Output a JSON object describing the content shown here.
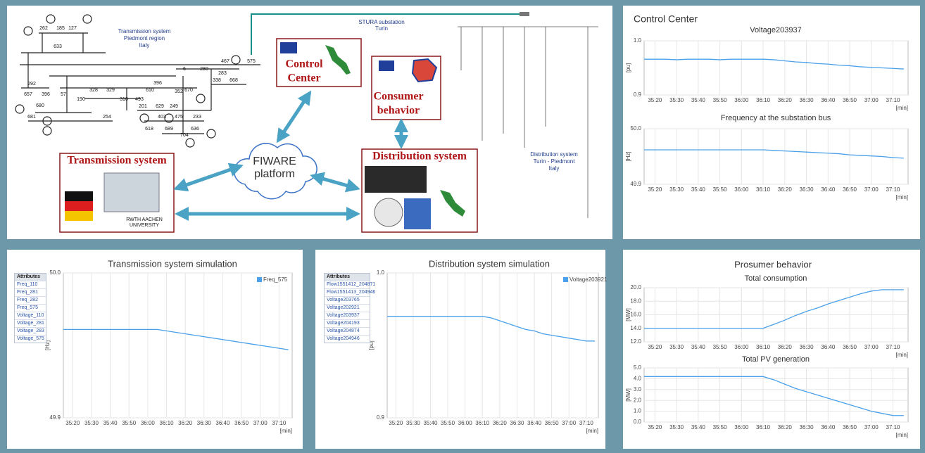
{
  "diagram": {
    "transmission_note": [
      "Transmission system",
      "Piedmont region",
      "Italy"
    ],
    "stura_note": [
      "STURA substation",
      "Turin"
    ],
    "distribution_note": [
      "Distribution system",
      "Turin - Piedmont",
      "Italy"
    ],
    "control_center": [
      "Control",
      "Center"
    ],
    "consumer": [
      "Consumer",
      "behavior"
    ],
    "transmission_box": "Transmission system",
    "distribution_box": "Distribution system",
    "fiware": [
      "FIWARE",
      "platform"
    ],
    "rwth": [
      "RWTH AACHEN",
      "UNIVERSITY"
    ],
    "bus_labels": [
      "262",
      "185",
      "127",
      "633",
      "467",
      "575",
      "6",
      "280",
      "283",
      "338",
      "668",
      "292",
      "396",
      "657",
      "396",
      "57",
      "328",
      "329",
      "610",
      "352",
      "670",
      "190",
      "310",
      "493",
      "680",
      "201",
      "629",
      "249",
      "681",
      "403",
      "475",
      "233",
      "254",
      "618",
      "689",
      "636",
      "704"
    ]
  },
  "control_center": {
    "title": "Control Center"
  },
  "prosumer": {
    "title": "Prosumer behavior"
  },
  "transmission_attributes": {
    "header": "Attributes",
    "items": [
      "Freq_110",
      "Freq_281",
      "Freq_282",
      "Freq_575",
      "Voltage_110",
      "Voltage_281",
      "Voltage_283",
      "Voltage_575"
    ]
  },
  "distribution_attributes": {
    "header": "Attributes",
    "items": [
      "Flow1551412_204871",
      "Flow1551413_204946",
      "Voltage203765",
      "Voltage202921",
      "Voltage203937",
      "Voltage204193",
      "Voltage204874",
      "Voltage204946"
    ]
  },
  "chart_data": [
    {
      "type": "line",
      "title": "Voltage203937",
      "ylabel": "[pu]",
      "xlabel": "[min]",
      "color": "#4aa0ea",
      "grid": true,
      "x": [
        2115,
        2120,
        2125,
        2130,
        2135,
        2140,
        2145,
        2150,
        2155,
        2160,
        2165,
        2170,
        2175,
        2180,
        2185,
        2190,
        2195,
        2200,
        2205,
        2210,
        2215,
        2220,
        2225,
        2230,
        2235
      ],
      "values": [
        0.966,
        0.966,
        0.966,
        0.965,
        0.966,
        0.966,
        0.966,
        0.965,
        0.966,
        0.966,
        0.966,
        0.966,
        0.965,
        0.963,
        0.961,
        0.96,
        0.958,
        0.957,
        0.955,
        0.954,
        0.952,
        0.951,
        0.95,
        0.949,
        0.948
      ],
      "xlim": [
        2115,
        2237
      ],
      "ylim": [
        0.9,
        1.0
      ],
      "xticks": [
        {
          "value": 2120,
          "label": "35:20"
        },
        {
          "value": 2130,
          "label": "35:30"
        },
        {
          "value": 2140,
          "label": "35:40"
        },
        {
          "value": 2150,
          "label": "35:50"
        },
        {
          "value": 2160,
          "label": "36:00"
        },
        {
          "value": 2170,
          "label": "36:10"
        },
        {
          "value": 2180,
          "label": "36:20"
        },
        {
          "value": 2190,
          "label": "36:30"
        },
        {
          "value": 2200,
          "label": "36:40"
        },
        {
          "value": 2210,
          "label": "36:50"
        },
        {
          "value": 2220,
          "label": "37:00"
        },
        {
          "value": 2230,
          "label": "37:10"
        }
      ],
      "yticks": [
        0.9,
        {
          "value": 1,
          "label": "1.0"
        }
      ]
    },
    {
      "type": "line",
      "title": "Frequency at the substation bus",
      "ylabel": "[Hz]",
      "xlabel": "[min]",
      "color": "#4aa0ea",
      "grid": true,
      "x": [
        2115,
        2120,
        2125,
        2130,
        2135,
        2140,
        2145,
        2150,
        2155,
        2160,
        2165,
        2170,
        2175,
        2180,
        2185,
        2190,
        2195,
        2200,
        2205,
        2210,
        2215,
        2220,
        2225,
        2230,
        2235
      ],
      "values": [
        49.962,
        49.962,
        49.962,
        49.962,
        49.962,
        49.962,
        49.962,
        49.962,
        49.962,
        49.962,
        49.962,
        49.962,
        49.961,
        49.96,
        49.959,
        49.958,
        49.957,
        49.956,
        49.955,
        49.953,
        49.952,
        49.951,
        49.95,
        49.948,
        49.947
      ],
      "xlim": [
        2115,
        2237
      ],
      "ylim": [
        49.9,
        50.0
      ],
      "xticks": [
        {
          "value": 2120,
          "label": "35:20"
        },
        {
          "value": 2130,
          "label": "35:30"
        },
        {
          "value": 2140,
          "label": "35:40"
        },
        {
          "value": 2150,
          "label": "35:50"
        },
        {
          "value": 2160,
          "label": "36:00"
        },
        {
          "value": 2170,
          "label": "36:10"
        },
        {
          "value": 2180,
          "label": "36:20"
        },
        {
          "value": 2190,
          "label": "36:30"
        },
        {
          "value": 2200,
          "label": "36:40"
        },
        {
          "value": 2210,
          "label": "36:50"
        },
        {
          "value": 2220,
          "label": "37:00"
        },
        {
          "value": 2230,
          "label": "37:10"
        }
      ],
      "yticks": [
        49.9,
        {
          "value": 50,
          "label": "50.0"
        }
      ]
    },
    {
      "type": "line",
      "title": "Transmission system simulation",
      "ylabel": "[Hz]",
      "xlabel": "[min]",
      "grid": true,
      "x": [
        2115,
        2120,
        2125,
        2130,
        2135,
        2140,
        2145,
        2150,
        2155,
        2160,
        2165,
        2170,
        2175,
        2180,
        2185,
        2190,
        2195,
        2200,
        2205,
        2210,
        2215,
        2220,
        2225,
        2230,
        2235
      ],
      "series": [
        {
          "name": "Freq_575",
          "color": "#4aa0ea",
          "values": [
            49.961,
            49.961,
            49.961,
            49.961,
            49.961,
            49.961,
            49.961,
            49.961,
            49.961,
            49.961,
            49.961,
            49.96,
            49.959,
            49.958,
            49.957,
            49.956,
            49.955,
            49.954,
            49.953,
            49.952,
            49.951,
            49.95,
            49.949,
            49.948,
            49.947
          ]
        }
      ],
      "xlim": [
        2115,
        2237
      ],
      "ylim": [
        49.9,
        50.0
      ],
      "xticks": [
        {
          "value": 2120,
          "label": "35:20"
        },
        {
          "value": 2130,
          "label": "35:30"
        },
        {
          "value": 2140,
          "label": "35:40"
        },
        {
          "value": 2150,
          "label": "35:50"
        },
        {
          "value": 2160,
          "label": "36:00"
        },
        {
          "value": 2170,
          "label": "36:10"
        },
        {
          "value": 2180,
          "label": "36:20"
        },
        {
          "value": 2190,
          "label": "36:30"
        },
        {
          "value": 2200,
          "label": "36:40"
        },
        {
          "value": 2210,
          "label": "36:50"
        },
        {
          "value": 2220,
          "label": "37:00"
        },
        {
          "value": 2230,
          "label": "37:10"
        }
      ],
      "yticks": [
        49.9,
        {
          "value": 50,
          "label": "50.0"
        }
      ]
    },
    {
      "type": "line",
      "title": "Distribution system simulation",
      "ylabel": "[pu]",
      "xlabel": "[min]",
      "grid": true,
      "x": [
        2115,
        2120,
        2125,
        2130,
        2135,
        2140,
        2145,
        2150,
        2155,
        2160,
        2165,
        2170,
        2175,
        2180,
        2185,
        2190,
        2195,
        2200,
        2205,
        2210,
        2215,
        2220,
        2225,
        2230,
        2235
      ],
      "series": [
        {
          "name": "Voltage203921",
          "color": "#4aa0ea",
          "values": [
            0.97,
            0.97,
            0.97,
            0.97,
            0.97,
            0.97,
            0.97,
            0.97,
            0.97,
            0.97,
            0.97,
            0.97,
            0.969,
            0.967,
            0.965,
            0.963,
            0.961,
            0.96,
            0.958,
            0.957,
            0.956,
            0.955,
            0.954,
            0.953,
            0.953
          ]
        }
      ],
      "xlim": [
        2115,
        2237
      ],
      "ylim": [
        0.9,
        1.0
      ],
      "xticks": [
        {
          "value": 2120,
          "label": "35:20"
        },
        {
          "value": 2130,
          "label": "35:30"
        },
        {
          "value": 2140,
          "label": "35:40"
        },
        {
          "value": 2150,
          "label": "35:50"
        },
        {
          "value": 2160,
          "label": "36:00"
        },
        {
          "value": 2170,
          "label": "36:10"
        },
        {
          "value": 2180,
          "label": "36:20"
        },
        {
          "value": 2190,
          "label": "36:30"
        },
        {
          "value": 2200,
          "label": "36:40"
        },
        {
          "value": 2210,
          "label": "36:50"
        },
        {
          "value": 2220,
          "label": "37:00"
        },
        {
          "value": 2230,
          "label": "37:10"
        }
      ],
      "yticks": [
        0.9,
        {
          "value": 1,
          "label": "1.0"
        }
      ]
    },
    {
      "type": "line",
      "title": "Total consumption",
      "ylabel": "[MW]",
      "xlabel": "[min]",
      "color": "#4aa0ea",
      "grid": true,
      "x": [
        2115,
        2120,
        2125,
        2130,
        2135,
        2140,
        2145,
        2150,
        2155,
        2160,
        2165,
        2170,
        2175,
        2180,
        2185,
        2190,
        2195,
        2200,
        2205,
        2210,
        2215,
        2220,
        2225,
        2230,
        2235
      ],
      "values": [
        14.0,
        14.0,
        14.0,
        14.0,
        14.0,
        14.0,
        14.0,
        14.0,
        14.0,
        14.0,
        14.0,
        14.0,
        14.6,
        15.2,
        15.9,
        16.5,
        17.0,
        17.6,
        18.1,
        18.6,
        19.1,
        19.5,
        19.7,
        19.7,
        19.7
      ],
      "xlim": [
        2115,
        2237
      ],
      "ylim": [
        12,
        20
      ],
      "xticks": [
        {
          "value": 2120,
          "label": "35:20"
        },
        {
          "value": 2130,
          "label": "35:30"
        },
        {
          "value": 2140,
          "label": "35:40"
        },
        {
          "value": 2150,
          "label": "35:50"
        },
        {
          "value": 2160,
          "label": "36:00"
        },
        {
          "value": 2170,
          "label": "36:10"
        },
        {
          "value": 2180,
          "label": "36:20"
        },
        {
          "value": 2190,
          "label": "36:30"
        },
        {
          "value": 2200,
          "label": "36:40"
        },
        {
          "value": 2210,
          "label": "36:50"
        },
        {
          "value": 2220,
          "label": "37:00"
        },
        {
          "value": 2230,
          "label": "37:10"
        }
      ],
      "yticks": [
        {
          "value": 12,
          "label": "12.0"
        },
        {
          "value": 14,
          "label": "14.0"
        },
        {
          "value": 16,
          "label": "16.0"
        },
        {
          "value": 18,
          "label": "18.0"
        },
        {
          "value": 20,
          "label": "20.0"
        }
      ]
    },
    {
      "type": "line",
      "title": "Total PV generation",
      "ylabel": "[MW]",
      "xlabel": "[min]",
      "color": "#4aa0ea",
      "grid": true,
      "x": [
        2115,
        2120,
        2125,
        2130,
        2135,
        2140,
        2145,
        2150,
        2155,
        2160,
        2165,
        2170,
        2175,
        2180,
        2185,
        2190,
        2195,
        2200,
        2205,
        2210,
        2215,
        2220,
        2225,
        2230,
        2235
      ],
      "values": [
        4.2,
        4.2,
        4.2,
        4.2,
        4.2,
        4.2,
        4.2,
        4.2,
        4.2,
        4.2,
        4.2,
        4.2,
        3.9,
        3.5,
        3.1,
        2.8,
        2.5,
        2.2,
        1.9,
        1.6,
        1.3,
        1.0,
        0.8,
        0.6,
        0.6
      ],
      "xlim": [
        2115,
        2237
      ],
      "ylim": [
        0,
        5
      ],
      "xticks": [
        {
          "value": 2120,
          "label": "35:20"
        },
        {
          "value": 2130,
          "label": "35:30"
        },
        {
          "value": 2140,
          "label": "35:40"
        },
        {
          "value": 2150,
          "label": "35:50"
        },
        {
          "value": 2160,
          "label": "36:00"
        },
        {
          "value": 2170,
          "label": "36:10"
        },
        {
          "value": 2180,
          "label": "36:20"
        },
        {
          "value": 2190,
          "label": "36:30"
        },
        {
          "value": 2200,
          "label": "36:40"
        },
        {
          "value": 2210,
          "label": "36:50"
        },
        {
          "value": 2220,
          "label": "37:00"
        },
        {
          "value": 2230,
          "label": "37:10"
        }
      ],
      "yticks": [
        {
          "value": 0,
          "label": "0.0"
        },
        {
          "value": 1,
          "label": "1.0"
        },
        {
          "value": 2,
          "label": "2.0"
        },
        {
          "value": 3,
          "label": "3.0"
        },
        {
          "value": 4,
          "label": "4.0"
        },
        {
          "value": 5,
          "label": "5.0"
        }
      ]
    }
  ]
}
